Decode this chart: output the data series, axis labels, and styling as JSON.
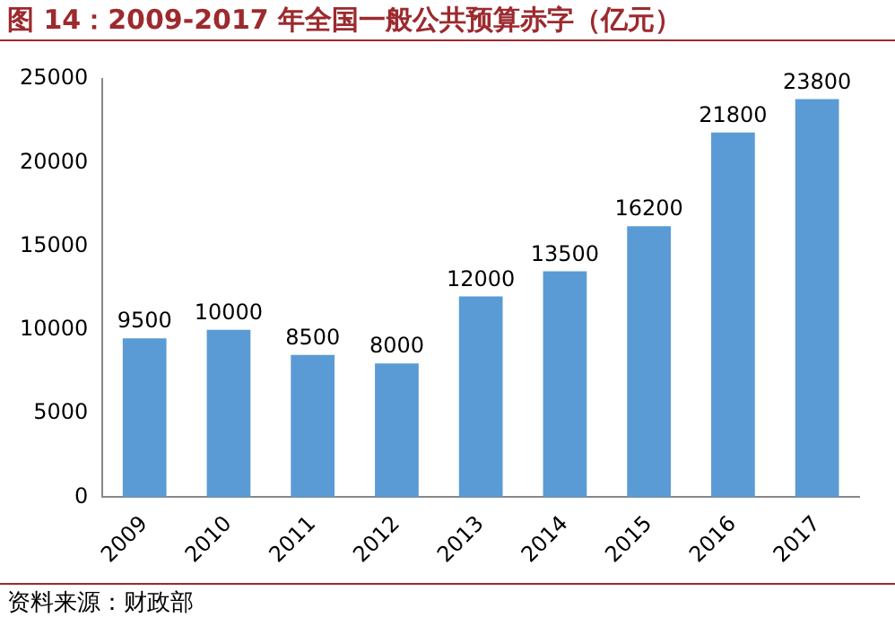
{
  "chart_data": {
    "type": "bar",
    "title": "图 14：2009-2017 年全国一般公共预算赤字（亿元）",
    "categories": [
      "2009",
      "2010",
      "2011",
      "2012",
      "2013",
      "2014",
      "2015",
      "2016",
      "2017"
    ],
    "values": [
      9500,
      10000,
      8500,
      8000,
      12000,
      13500,
      16200,
      21800,
      23800
    ],
    "color": "#5b9bd5",
    "ylim": [
      0,
      25000
    ],
    "yticks": [
      0,
      5000,
      10000,
      15000,
      20000,
      25000
    ],
    "grid": false,
    "legend": false,
    "data_labels": true,
    "annotations": [
      "资料来源：财政部"
    ]
  }
}
